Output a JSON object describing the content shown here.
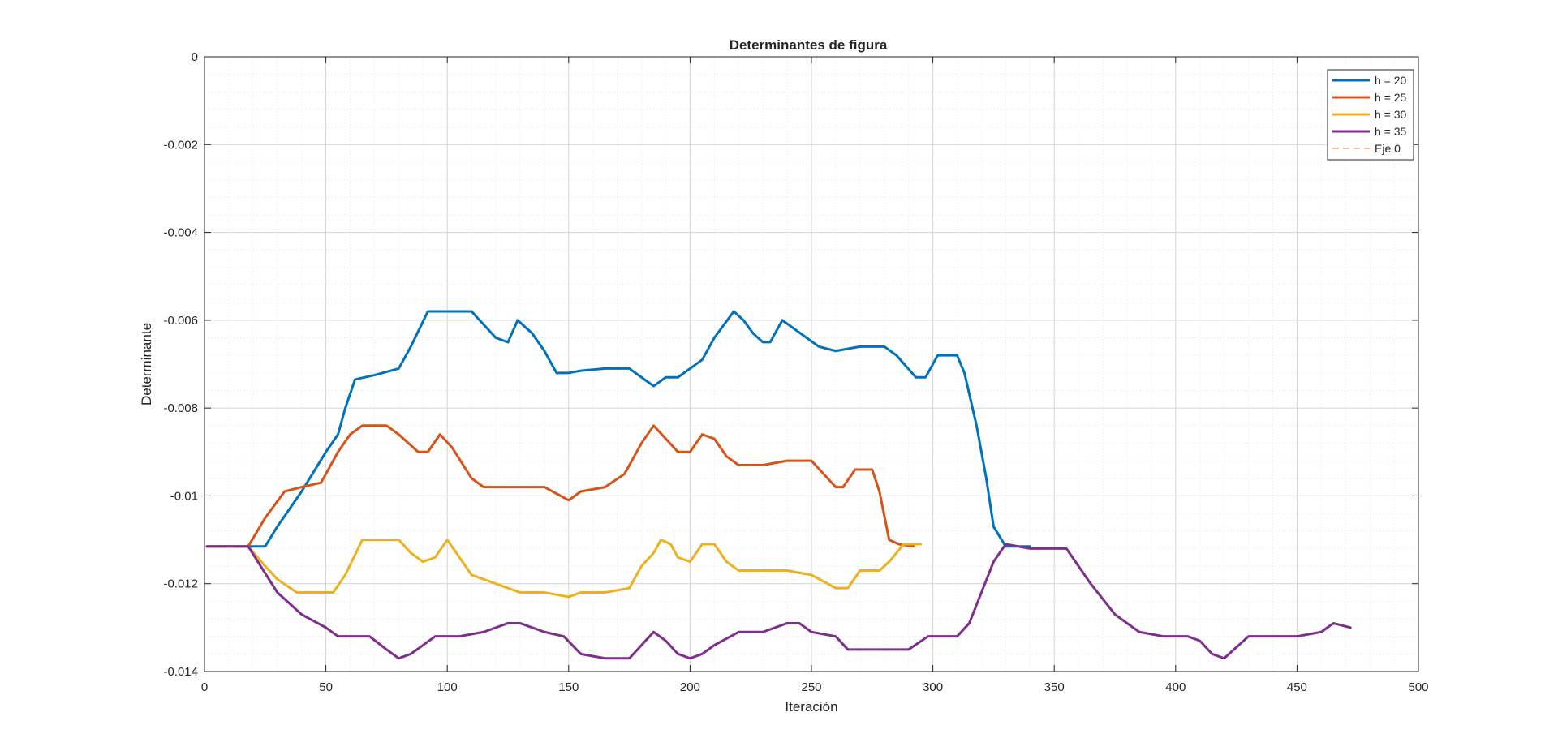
{
  "chart_data": {
    "type": "line",
    "title": "Determinantes de figura",
    "xlabel": "Iteración",
    "ylabel": "Determinante",
    "xlim": [
      0,
      500
    ],
    "ylim": [
      -0.014,
      0
    ],
    "xticks": [
      0,
      50,
      100,
      150,
      200,
      250,
      300,
      350,
      400,
      450,
      500
    ],
    "yticks": [
      0,
      -0.002,
      -0.004,
      -0.006,
      -0.008,
      -0.01,
      -0.012,
      -0.014
    ],
    "xtick_labels": [
      "0",
      "50",
      "100",
      "150",
      "200",
      "250",
      "300",
      "350",
      "400",
      "450",
      "500"
    ],
    "ytick_labels": [
      "0",
      "-0.002",
      "-0.004",
      "-0.006",
      "-0.008",
      "-0.01",
      "-0.012",
      "-0.014"
    ],
    "grid": true,
    "minor_grid": true,
    "legend_position": "top-right",
    "series": [
      {
        "name": "h = 20",
        "color": "#0072BD",
        "style": "solid",
        "x": [
          1,
          25,
          30,
          40,
          50,
          55,
          58,
          62,
          70,
          80,
          85,
          92,
          110,
          115,
          120,
          125,
          129,
          135,
          140,
          145,
          150,
          155,
          165,
          175,
          180,
          185,
          190,
          195,
          200,
          205,
          210,
          218,
          222,
          226,
          230,
          233,
          238,
          243,
          248,
          253,
          260,
          270,
          280,
          285,
          293,
          297,
          302,
          310,
          313,
          318,
          322,
          325,
          330,
          340
        ],
        "y": [
          -0.01115,
          -0.01115,
          -0.0107,
          -0.0099,
          -0.009,
          -0.0086,
          -0.008,
          -0.00735,
          -0.00725,
          -0.0071,
          -0.0066,
          -0.0058,
          -0.0058,
          -0.0061,
          -0.0064,
          -0.0065,
          -0.006,
          -0.0063,
          -0.0067,
          -0.0072,
          -0.0072,
          -0.00715,
          -0.0071,
          -0.0071,
          -0.0073,
          -0.0075,
          -0.0073,
          -0.0073,
          -0.0071,
          -0.0069,
          -0.0064,
          -0.0058,
          -0.006,
          -0.0063,
          -0.0065,
          -0.0065,
          -0.006,
          -0.0062,
          -0.0064,
          -0.0066,
          -0.0067,
          -0.0066,
          -0.0066,
          -0.0068,
          -0.0073,
          -0.0073,
          -0.0068,
          -0.0068,
          -0.0072,
          -0.0084,
          -0.0096,
          -0.0107,
          -0.01115,
          -0.01115
        ]
      },
      {
        "name": "h = 25",
        "color": "#D95319",
        "style": "solid",
        "x": [
          1,
          18,
          25,
          33,
          40,
          48,
          55,
          60,
          65,
          75,
          80,
          88,
          92,
          97,
          102,
          110,
          115,
          125,
          140,
          150,
          155,
          165,
          173,
          180,
          185,
          190,
          195,
          200,
          205,
          210,
          215,
          220,
          230,
          240,
          250,
          255,
          260,
          263,
          268,
          275,
          278,
          282,
          286,
          292
        ],
        "y": [
          -0.01115,
          -0.01115,
          -0.0105,
          -0.0099,
          -0.0098,
          -0.0097,
          -0.009,
          -0.0086,
          -0.0084,
          -0.0084,
          -0.0086,
          -0.009,
          -0.009,
          -0.0086,
          -0.0089,
          -0.0096,
          -0.0098,
          -0.0098,
          -0.0098,
          -0.0101,
          -0.0099,
          -0.0098,
          -0.0095,
          -0.0088,
          -0.0084,
          -0.0087,
          -0.009,
          -0.009,
          -0.0086,
          -0.0087,
          -0.0091,
          -0.0093,
          -0.0093,
          -0.0092,
          -0.0092,
          -0.0095,
          -0.0098,
          -0.0098,
          -0.0094,
          -0.0094,
          -0.0099,
          -0.011,
          -0.0111,
          -0.01115
        ]
      },
      {
        "name": "h = 30",
        "color": "#EDB120",
        "style": "solid",
        "x": [
          1,
          18,
          25,
          30,
          38,
          45,
          53,
          58,
          65,
          80,
          85,
          90,
          95,
          100,
          105,
          110,
          120,
          130,
          140,
          150,
          155,
          165,
          175,
          180,
          185,
          188,
          192,
          195,
          200,
          205,
          210,
          215,
          220,
          230,
          240,
          250,
          260,
          265,
          270,
          278,
          282,
          288,
          295
        ],
        "y": [
          -0.01115,
          -0.01115,
          -0.0116,
          -0.0119,
          -0.0122,
          -0.0122,
          -0.0122,
          -0.0118,
          -0.011,
          -0.011,
          -0.0113,
          -0.0115,
          -0.0114,
          -0.011,
          -0.0114,
          -0.0118,
          -0.012,
          -0.0122,
          -0.0122,
          -0.0123,
          -0.0122,
          -0.0122,
          -0.0121,
          -0.0116,
          -0.0113,
          -0.011,
          -0.0111,
          -0.0114,
          -0.0115,
          -0.0111,
          -0.0111,
          -0.0115,
          -0.0117,
          -0.0117,
          -0.0117,
          -0.0118,
          -0.0121,
          -0.0121,
          -0.0117,
          -0.0117,
          -0.0115,
          -0.0111,
          -0.0111
        ]
      },
      {
        "name": "h = 35",
        "color": "#7E2F8E",
        "style": "solid",
        "x": [
          1,
          18,
          30,
          40,
          50,
          55,
          62,
          68,
          75,
          80,
          85,
          95,
          105,
          115,
          125,
          130,
          140,
          148,
          155,
          165,
          175,
          185,
          190,
          195,
          200,
          205,
          210,
          220,
          230,
          240,
          245,
          250,
          260,
          265,
          275,
          290,
          298,
          310,
          315,
          320,
          325,
          330,
          340,
          355,
          365,
          375,
          385,
          395,
          405,
          410,
          415,
          420,
          430,
          440,
          450,
          460,
          465,
          472
        ],
        "y": [
          -0.01115,
          -0.01115,
          -0.0122,
          -0.0127,
          -0.013,
          -0.0132,
          -0.0132,
          -0.0132,
          -0.0135,
          -0.0137,
          -0.0136,
          -0.0132,
          -0.0132,
          -0.0131,
          -0.0129,
          -0.0129,
          -0.0131,
          -0.0132,
          -0.0136,
          -0.0137,
          -0.0137,
          -0.0131,
          -0.0133,
          -0.0136,
          -0.0137,
          -0.0136,
          -0.0134,
          -0.0131,
          -0.0131,
          -0.0129,
          -0.0129,
          -0.0131,
          -0.0132,
          -0.0135,
          -0.0135,
          -0.0135,
          -0.0132,
          -0.0132,
          -0.0129,
          -0.0122,
          -0.0115,
          -0.0111,
          -0.0112,
          -0.0112,
          -0.012,
          -0.0127,
          -0.0131,
          -0.0132,
          -0.0132,
          -0.0133,
          -0.0136,
          -0.0137,
          -0.0132,
          -0.0132,
          -0.0132,
          -0.0131,
          -0.0129,
          -0.013
        ]
      },
      {
        "name": "Eje 0",
        "color": "#D95319",
        "style": "dashed",
        "x": [
          0,
          500
        ],
        "y": [
          0,
          0
        ]
      }
    ]
  }
}
